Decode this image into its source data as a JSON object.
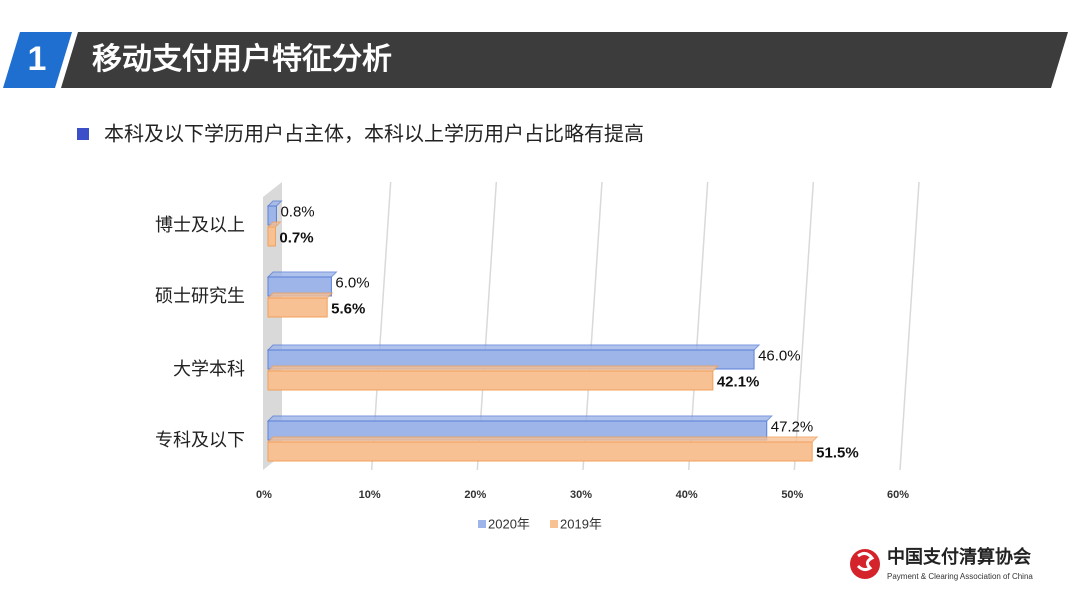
{
  "header": {
    "number": "1",
    "title": "移动支付用户特征分析"
  },
  "subtitle": "本科及以下学历用户占主体，本科以上学历用户占比略有提高",
  "chart_data": {
    "type": "hbar",
    "categories": [
      "博士及以上",
      "硕士研究生",
      "大学本科",
      "专科及以下"
    ],
    "series": [
      {
        "name": "2020年",
        "color": "#9db5e8",
        "values": [
          0.8,
          6.0,
          46.0,
          47.2
        ],
        "value_labels": [
          "0.8%",
          "6.0%",
          "46.0%",
          "47.2%"
        ]
      },
      {
        "name": "2019年",
        "color": "#f8c194",
        "values": [
          0.7,
          5.6,
          42.1,
          51.5
        ],
        "value_labels": [
          "0.7%",
          "5.6%",
          "42.1%",
          "51.5%"
        ]
      }
    ],
    "xlim": [
      0,
      60
    ],
    "xticks": [
      {
        "value": 0,
        "label": "0%"
      },
      {
        "value": 10,
        "label": "10%"
      },
      {
        "value": 20,
        "label": "20%"
      },
      {
        "value": 30,
        "label": "30%"
      },
      {
        "value": 40,
        "label": "40%"
      },
      {
        "value": 50,
        "label": "50%"
      },
      {
        "value": 60,
        "label": "60%"
      }
    ],
    "grid": true
  },
  "logo": {
    "name": "中国支付清算协会",
    "english": "Payment & Clearing Association of China"
  }
}
